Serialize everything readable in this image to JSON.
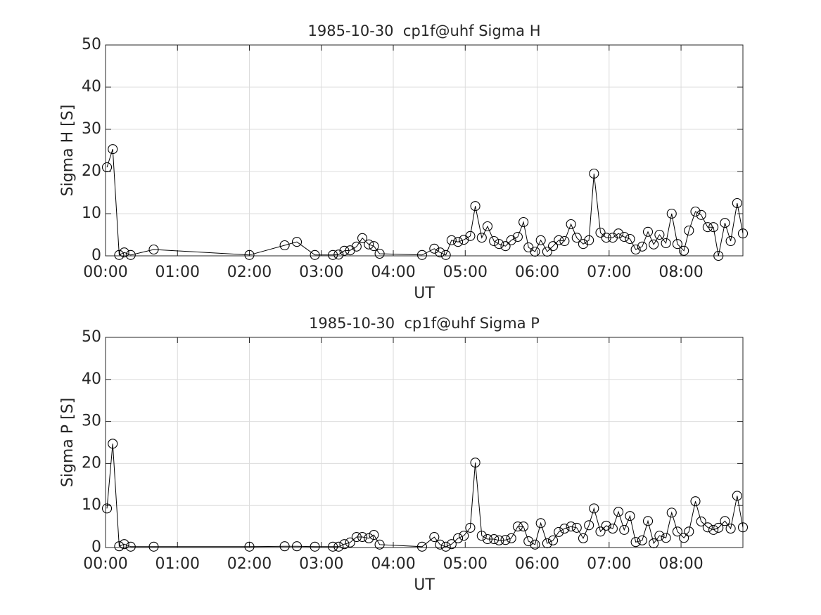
{
  "chart_data": [
    {
      "type": "line",
      "title": "1985-10-30  cp1f@uhf Sigma H",
      "xlabel": "UT",
      "ylabel": "Sigma H [S]",
      "color": "#000000",
      "marker": "circle",
      "grid": true,
      "x": [
        0.02,
        0.1,
        0.19,
        0.26,
        0.35,
        0.67,
        2.0,
        2.49,
        2.66,
        2.91,
        3.16,
        3.24,
        3.32,
        3.4,
        3.49,
        3.57,
        3.66,
        3.73,
        3.81,
        4.4,
        4.57,
        4.65,
        4.73,
        4.81,
        4.9,
        4.98,
        5.07,
        5.14,
        5.23,
        5.31,
        5.4,
        5.47,
        5.56,
        5.64,
        5.73,
        5.81,
        5.88,
        5.97,
        6.05,
        6.14,
        6.22,
        6.3,
        6.38,
        6.47,
        6.55,
        6.64,
        6.72,
        6.79,
        6.88,
        6.96,
        7.05,
        7.13,
        7.21,
        7.29,
        7.37,
        7.46,
        7.54,
        7.62,
        7.7,
        7.79,
        7.87,
        7.95,
        8.04,
        8.11,
        8.2,
        8.28,
        8.37,
        8.45,
        8.52,
        8.61,
        8.69,
        8.78,
        8.86
      ],
      "values": [
        21.0,
        25.3,
        0.2,
        0.8,
        0.2,
        1.5,
        0.2,
        2.5,
        3.3,
        0.2,
        0.2,
        0.3,
        1.2,
        1.3,
        2.2,
        4.2,
        2.7,
        2.3,
        0.5,
        0.2,
        1.7,
        0.8,
        0.2,
        3.7,
        3.3,
        3.8,
        4.7,
        11.8,
        4.3,
        7.0,
        3.5,
        2.8,
        2.3,
        3.7,
        4.5,
        8.0,
        2.0,
        1.0,
        3.7,
        1.0,
        2.3,
        3.7,
        3.5,
        7.5,
        4.3,
        2.8,
        3.7,
        19.5,
        5.5,
        4.3,
        4.3,
        5.3,
        4.5,
        4.0,
        1.5,
        2.2,
        5.7,
        2.7,
        5.0,
        3.0,
        10.0,
        2.8,
        1.2,
        6.0,
        10.5,
        9.7,
        6.8,
        6.8,
        0,
        7.8,
        3.5,
        12.5,
        5.3
      ],
      "xlim": [
        0,
        8.86
      ],
      "ylim": [
        0,
        50
      ],
      "xticks": [
        {
          "value": 0,
          "label": "00:00"
        },
        {
          "value": 1,
          "label": "01:00"
        },
        {
          "value": 2,
          "label": "02:00"
        },
        {
          "value": 3,
          "label": "03:00"
        },
        {
          "value": 4,
          "label": "04:00"
        },
        {
          "value": 5,
          "label": "05:00"
        },
        {
          "value": 6,
          "label": "06:00"
        },
        {
          "value": 7,
          "label": "07:00"
        },
        {
          "value": 8,
          "label": "08:00"
        }
      ],
      "yticks": [
        0,
        10,
        20,
        30,
        40,
        50
      ]
    },
    {
      "type": "line",
      "title": "1985-10-30  cp1f@uhf Sigma P",
      "xlabel": "UT",
      "ylabel": "Sigma P [S]",
      "color": "#000000",
      "marker": "circle",
      "grid": true,
      "x": [
        0.02,
        0.1,
        0.19,
        0.26,
        0.35,
        0.67,
        2.0,
        2.49,
        2.66,
        2.91,
        3.16,
        3.24,
        3.32,
        3.4,
        3.49,
        3.57,
        3.66,
        3.73,
        3.81,
        4.4,
        4.57,
        4.65,
        4.73,
        4.81,
        4.9,
        4.98,
        5.07,
        5.14,
        5.23,
        5.31,
        5.4,
        5.47,
        5.56,
        5.64,
        5.73,
        5.81,
        5.88,
        5.97,
        6.05,
        6.14,
        6.22,
        6.3,
        6.38,
        6.47,
        6.55,
        6.64,
        6.72,
        6.79,
        6.88,
        6.96,
        7.05,
        7.13,
        7.21,
        7.29,
        7.37,
        7.46,
        7.54,
        7.62,
        7.7,
        7.79,
        7.87,
        7.95,
        8.04,
        8.11,
        8.2,
        8.28,
        8.37,
        8.45,
        8.52,
        8.61,
        8.69,
        8.78,
        8.86
      ],
      "values": [
        9.3,
        24.7,
        0.3,
        0.8,
        0.2,
        0.2,
        0.2,
        0.3,
        0.3,
        0.2,
        0.2,
        0.2,
        0.8,
        1.2,
        2.5,
        2.5,
        2.2,
        3.0,
        0.7,
        0.2,
        2.5,
        0.7,
        0.2,
        0.8,
        2.2,
        2.8,
        4.7,
        20.2,
        2.8,
        2.0,
        2.0,
        1.7,
        1.8,
        2.2,
        5.0,
        5.0,
        1.5,
        0.7,
        5.8,
        1.0,
        1.7,
        3.7,
        4.5,
        5.0,
        4.7,
        2.2,
        5.3,
        9.3,
        3.8,
        5.2,
        4.5,
        8.5,
        4.2,
        7.5,
        1.3,
        1.7,
        6.3,
        1.0,
        2.8,
        2.3,
        8.3,
        3.8,
        2.3,
        3.8,
        11.0,
        6.2,
        4.8,
        4.2,
        4.7,
        6.3,
        4.5,
        12.3,
        4.8
      ],
      "xlim": [
        0,
        8.86
      ],
      "ylim": [
        0,
        50
      ],
      "xticks": [
        {
          "value": 0,
          "label": "00:00"
        },
        {
          "value": 1,
          "label": "01:00"
        },
        {
          "value": 2,
          "label": "02:00"
        },
        {
          "value": 3,
          "label": "03:00"
        },
        {
          "value": 4,
          "label": "04:00"
        },
        {
          "value": 5,
          "label": "05:00"
        },
        {
          "value": 6,
          "label": "06:00"
        },
        {
          "value": 7,
          "label": "07:00"
        },
        {
          "value": 8,
          "label": "08:00"
        }
      ],
      "yticks": [
        0,
        10,
        20,
        30,
        40,
        50
      ]
    }
  ]
}
